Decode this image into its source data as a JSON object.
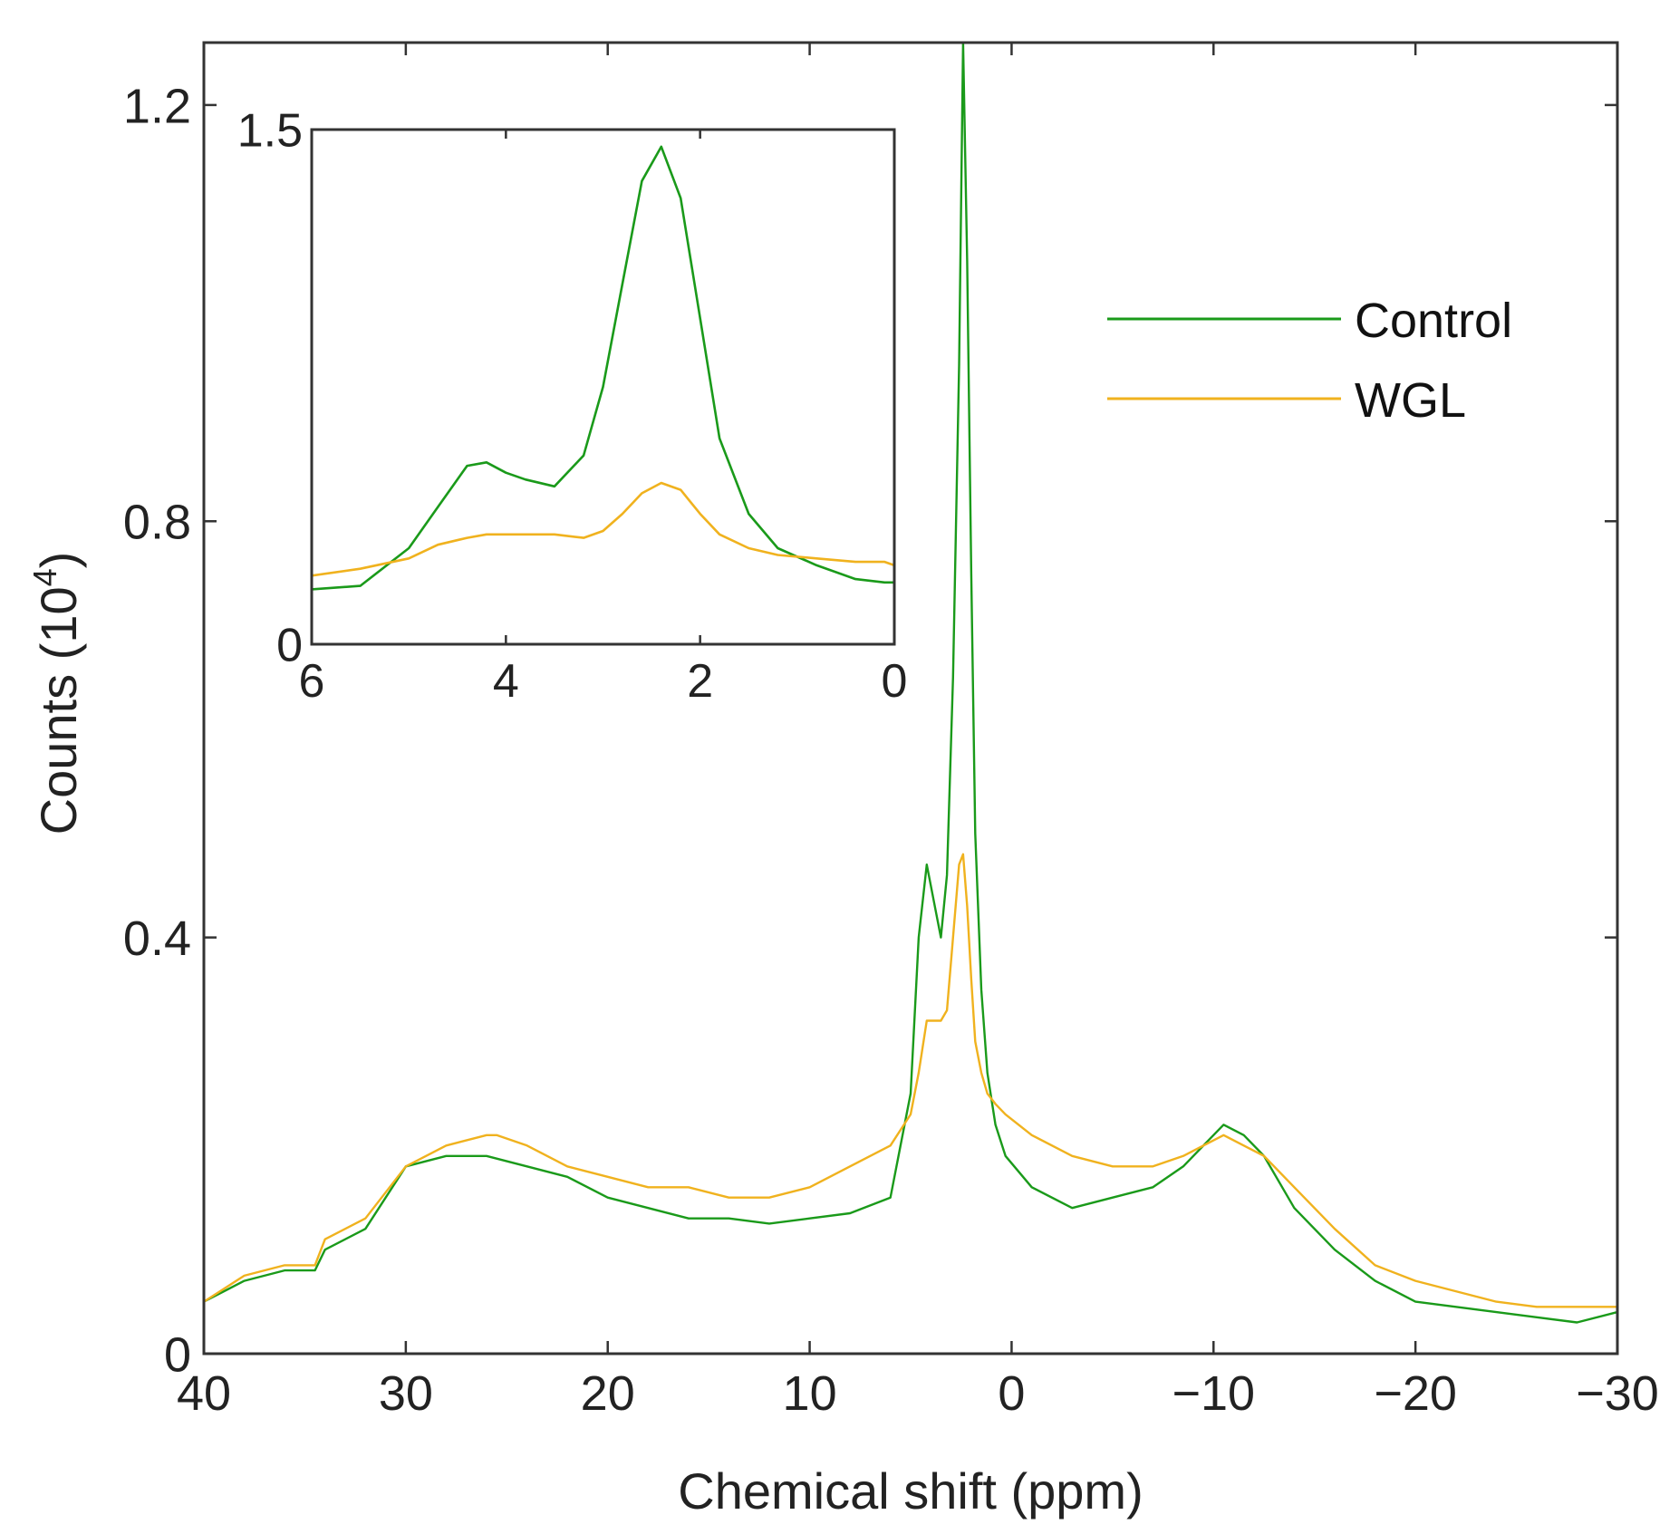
{
  "chart_data": [
    {
      "type": "line",
      "title": "",
      "xlabel": "Chemical shift (ppm)",
      "ylabel": "Counts (10",
      "ylabel_superscript": "4",
      "ylabel_close": ")",
      "xlim": [
        40,
        -30
      ],
      "ylim": [
        0,
        1.26
      ],
      "xticks": [
        40,
        30,
        20,
        10,
        0,
        -10,
        -20,
        -30
      ],
      "xtick_labels": [
        "40",
        "30",
        "20",
        "10",
        "0",
        "−10",
        "−20",
        "−30"
      ],
      "yticks": [
        0,
        0.4,
        0.8,
        1.2
      ],
      "ytick_labels": [
        "0",
        "0.4",
        "0.8",
        "1.2"
      ],
      "grid": false,
      "legend": "right-upper",
      "series": [
        {
          "name": "Control",
          "color": "#1a9a1a",
          "x": [
            40,
            38,
            36,
            34.5,
            34,
            32,
            30,
            28,
            26,
            24,
            22,
            20,
            18,
            16,
            14,
            12,
            10,
            8,
            6,
            5,
            4.6,
            4.2,
            3.8,
            3.5,
            3.2,
            2.9,
            2.6,
            2.4,
            2.2,
            2.0,
            1.8,
            1.5,
            1.2,
            0.8,
            0.3,
            -1,
            -3,
            -5,
            -7,
            -8.5,
            -9.5,
            -10.5,
            -11.5,
            -12.5,
            -14,
            -16,
            -18,
            -20,
            -22,
            -24,
            -26,
            -28,
            -30
          ],
          "y": [
            0.05,
            0.07,
            0.08,
            0.08,
            0.1,
            0.12,
            0.18,
            0.19,
            0.19,
            0.18,
            0.17,
            0.15,
            0.14,
            0.13,
            0.13,
            0.125,
            0.13,
            0.135,
            0.15,
            0.25,
            0.4,
            0.47,
            0.43,
            0.4,
            0.46,
            0.65,
            0.95,
            1.26,
            1.05,
            0.75,
            0.5,
            0.35,
            0.27,
            0.22,
            0.19,
            0.16,
            0.14,
            0.15,
            0.16,
            0.18,
            0.2,
            0.22,
            0.21,
            0.19,
            0.14,
            0.1,
            0.07,
            0.05,
            0.045,
            0.04,
            0.035,
            0.03,
            0.04
          ]
        },
        {
          "name": "WGL",
          "color": "#f0b21e",
          "x": [
            40,
            38,
            36,
            34.5,
            34,
            32,
            30,
            28,
            26,
            25.5,
            24,
            22,
            20,
            18,
            16,
            14,
            12,
            10,
            8,
            6,
            5,
            4.6,
            4.2,
            3.8,
            3.5,
            3.2,
            2.9,
            2.6,
            2.4,
            2.2,
            2.0,
            1.8,
            1.5,
            1.2,
            0.8,
            0.3,
            -1,
            -3,
            -5,
            -7,
            -8.5,
            -9.5,
            -10.5,
            -11.5,
            -12.5,
            -14,
            -16,
            -18,
            -20,
            -22,
            -24,
            -26,
            -28,
            -30
          ],
          "y": [
            0.05,
            0.075,
            0.085,
            0.085,
            0.11,
            0.13,
            0.18,
            0.2,
            0.21,
            0.21,
            0.2,
            0.18,
            0.17,
            0.16,
            0.16,
            0.15,
            0.15,
            0.16,
            0.18,
            0.2,
            0.23,
            0.27,
            0.32,
            0.32,
            0.32,
            0.33,
            0.4,
            0.47,
            0.48,
            0.43,
            0.36,
            0.3,
            0.27,
            0.25,
            0.24,
            0.23,
            0.21,
            0.19,
            0.18,
            0.18,
            0.19,
            0.2,
            0.21,
            0.2,
            0.19,
            0.16,
            0.12,
            0.085,
            0.07,
            0.06,
            0.05,
            0.045,
            0.045,
            0.045
          ]
        }
      ]
    },
    {
      "type": "line",
      "title": "",
      "xlabel": "",
      "ylabel": "",
      "xlim": [
        6,
        0
      ],
      "ylim": [
        0,
        1.5
      ],
      "xticks": [
        6,
        4,
        2,
        0
      ],
      "xtick_labels": [
        "6",
        "4",
        "2",
        "0"
      ],
      "yticks": [
        0,
        1.5
      ],
      "ytick_labels": [
        "0",
        "1.5"
      ],
      "grid": false,
      "series": [
        {
          "name": "Control",
          "color": "#1a9a1a",
          "x": [
            6,
            5.5,
            5.0,
            4.7,
            4.4,
            4.2,
            4.0,
            3.8,
            3.5,
            3.2,
            3.0,
            2.8,
            2.6,
            2.4,
            2.2,
            2.0,
            1.8,
            1.5,
            1.2,
            0.8,
            0.4,
            0.1,
            0
          ],
          "y": [
            0.16,
            0.17,
            0.28,
            0.4,
            0.52,
            0.53,
            0.5,
            0.48,
            0.46,
            0.55,
            0.75,
            1.05,
            1.35,
            1.45,
            1.3,
            0.95,
            0.6,
            0.38,
            0.28,
            0.23,
            0.19,
            0.18,
            0.18
          ]
        },
        {
          "name": "WGL",
          "color": "#f0b21e",
          "x": [
            6,
            5.5,
            5.0,
            4.7,
            4.4,
            4.2,
            4.0,
            3.8,
            3.5,
            3.2,
            3.0,
            2.8,
            2.6,
            2.4,
            2.2,
            2.0,
            1.8,
            1.5,
            1.2,
            0.8,
            0.4,
            0.1,
            0
          ],
          "y": [
            0.2,
            0.22,
            0.25,
            0.29,
            0.31,
            0.32,
            0.32,
            0.32,
            0.32,
            0.31,
            0.33,
            0.38,
            0.44,
            0.47,
            0.45,
            0.38,
            0.32,
            0.28,
            0.26,
            0.25,
            0.24,
            0.24,
            0.23
          ]
        }
      ]
    }
  ]
}
